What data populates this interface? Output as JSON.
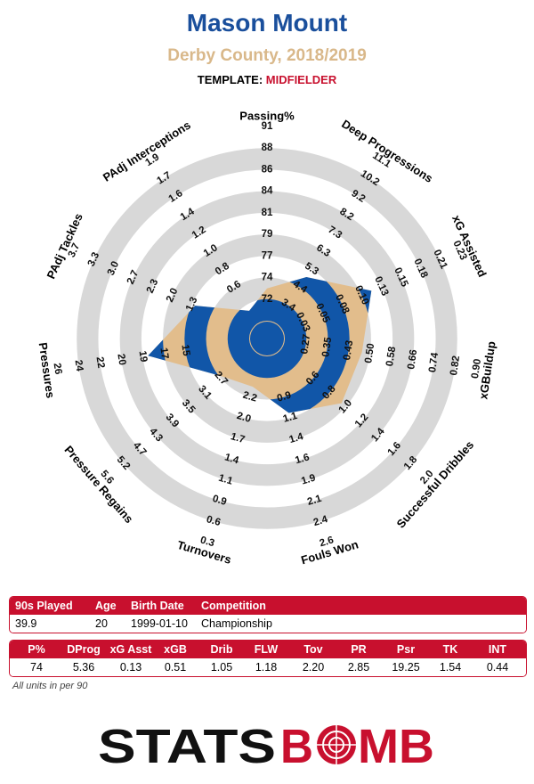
{
  "header": {
    "player": "Mason Mount",
    "team_season": "Derby County, 2018/2019",
    "template_label": "TEMPLATE:",
    "template_value": "MIDFIELDER"
  },
  "colors": {
    "player": "#1a4f9c",
    "team": "#d9b88a",
    "accent": "#c8102e",
    "ring": "#d8d8d8",
    "polygon_fill": "#e2bd8c",
    "polygon_ring_blue": "#1156a8"
  },
  "chart_data": {
    "type": "radar",
    "axes": [
      {
        "name": "Passing%",
        "ticks": [
          "72",
          "74",
          "77",
          "79",
          "81",
          "84",
          "86",
          "88",
          "91"
        ],
        "value": 74,
        "display": "74"
      },
      {
        "name": "Deep Progressions",
        "ticks": [
          "3.4",
          "4.4",
          "5.3",
          "6.3",
          "7.3",
          "8.2",
          "9.2",
          "10.2",
          "11.1"
        ],
        "value": 5.36,
        "display": "5.36"
      },
      {
        "name": "xG Assisted",
        "ticks": [
          "0.03",
          "0.05",
          "0.08",
          "0.10",
          "0.13",
          "0.15",
          "0.18",
          "0.21",
          "0.23"
        ],
        "value": 0.13,
        "display": "0.13"
      },
      {
        "name": "xGBuildup",
        "ticks": [
          "0.27",
          "0.35",
          "0.43",
          "0.50",
          "0.58",
          "0.66",
          "0.74",
          "0.82",
          "0.90"
        ],
        "value": 0.51,
        "display": "0.51"
      },
      {
        "name": "Successful Dribbles",
        "ticks": [
          "0.6",
          "0.8",
          "1.0",
          "1.2",
          "1.4",
          "1.6",
          "1.8",
          "2.0"
        ],
        "value": 1.05,
        "display": "1.05"
      },
      {
        "name": "Fouls Won",
        "ticks": [
          "0.9",
          "1.1",
          "1.4",
          "1.6",
          "1.9",
          "2.1",
          "2.4",
          "2.6"
        ],
        "value": 1.18,
        "display": "1.18"
      },
      {
        "name": "Turnovers",
        "ticks": [
          "2.2",
          "2.0",
          "1.7",
          "1.4",
          "1.1",
          "0.9",
          "0.6",
          "0.3"
        ],
        "value": 2.2,
        "display": "2.20"
      },
      {
        "name": "Pressure Regains",
        "ticks": [
          "2.7",
          "3.1",
          "3.5",
          "3.9",
          "4.3",
          "4.7",
          "5.2",
          "5.6"
        ],
        "value": 2.85,
        "display": "2.85"
      },
      {
        "name": "Pressures",
        "ticks": [
          "15",
          "17",
          "19",
          "20",
          "22",
          "24",
          "26"
        ],
        "value": 19.25,
        "display": "19.25"
      },
      {
        "name": "PAdj Tackles",
        "ticks": [
          "1.3",
          "2.0",
          "2.3",
          "2.7",
          "3.0",
          "3.3",
          "3.7"
        ],
        "value": 1.54,
        "display": "1.54"
      },
      {
        "name": "PAdj Interceptions",
        "ticks": [
          "0.6",
          "0.8",
          "1.0",
          "1.2",
          "1.4",
          "1.6",
          "1.7",
          "1.9"
        ],
        "value": 0.44,
        "display": "0.44"
      }
    ]
  },
  "table1": {
    "headers": [
      "90s Played",
      "Age",
      "Birth Date",
      "Competition"
    ],
    "values": [
      "39.9",
      "20",
      "1999-01-10",
      "Championship"
    ]
  },
  "table2": {
    "headers": [
      "P%",
      "DProg",
      "xG Asst",
      "xGB",
      "Drib",
      "FLW",
      "Tov",
      "PR",
      "Psr",
      "TK",
      "INT"
    ],
    "values": [
      "74",
      "5.36",
      "0.13",
      "0.51",
      "1.05",
      "1.18",
      "2.20",
      "2.85",
      "19.25",
      "1.54",
      "0.44"
    ]
  },
  "note": "All units in per 90",
  "logo": "STATSBOMB"
}
